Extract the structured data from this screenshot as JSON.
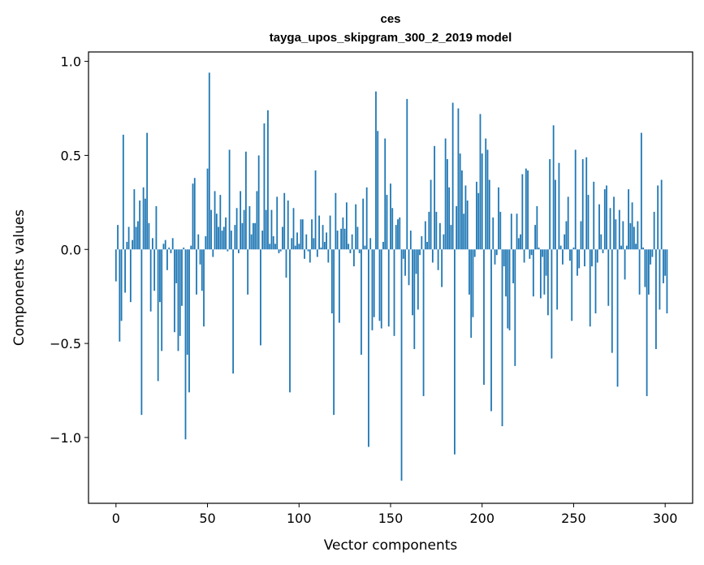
{
  "chart_data": {
    "type": "bar",
    "title": "ces",
    "subtitle": "tayga_upos_skipgram_300_2_2019 model",
    "xlabel": "Vector components",
    "ylabel": "Components values",
    "xlim": [
      -15,
      315
    ],
    "ylim": [
      -1.35,
      1.05
    ],
    "xticks": [
      0,
      50,
      100,
      150,
      200,
      250,
      300
    ],
    "xtick_labels": [
      "0",
      "50",
      "100",
      "150",
      "200",
      "250",
      "300"
    ],
    "yticks": [
      -1.0,
      -0.5,
      0.0,
      0.5,
      1.0
    ],
    "ytick_labels": [
      "−1.0",
      "−0.5",
      "0.0",
      "0.5",
      "1.0"
    ],
    "grid": false,
    "bar_color": "#1f77b4",
    "values": [
      -0.17,
      0.13,
      -0.49,
      -0.38,
      0.61,
      -0.23,
      0.04,
      0.12,
      -0.28,
      0.05,
      0.32,
      0.12,
      0.15,
      0.26,
      -0.88,
      0.33,
      0.27,
      0.62,
      0.14,
      -0.33,
      0.06,
      -0.22,
      0.23,
      -0.7,
      -0.28,
      -0.54,
      0.03,
      0.05,
      -0.11,
      0.01,
      -0.02,
      0.06,
      -0.44,
      -0.18,
      -0.54,
      -0.46,
      -0.3,
      0.01,
      -1.01,
      -0.56,
      -0.76,
      0.02,
      0.35,
      0.38,
      -0.24,
      0.08,
      -0.08,
      -0.22,
      -0.41,
      0.07,
      0.43,
      0.94,
      0.21,
      -0.04,
      0.31,
      0.19,
      0.12,
      0.29,
      0.1,
      0.12,
      0.17,
      -0.01,
      0.53,
      0.1,
      -0.66,
      0.13,
      0.22,
      -0.02,
      0.31,
      0.14,
      0.21,
      0.52,
      -0.24,
      0.23,
      0.08,
      0.14,
      0.14,
      0.31,
      0.5,
      -0.51,
      0.1,
      0.67,
      0.21,
      0.74,
      0.03,
      0.21,
      0.07,
      0.03,
      0.28,
      -0.02,
      -0.01,
      0.12,
      0.3,
      -0.15,
      0.26,
      -0.76,
      0.06,
      0.22,
      0.02,
      0.09,
      0.03,
      0.16,
      0.16,
      -0.05,
      0.08,
      -0.01,
      -0.07,
      0.16,
      0.06,
      0.42,
      -0.04,
      0.18,
      0.01,
      0.13,
      0.04,
      0.09,
      -0.07,
      0.18,
      -0.34,
      -0.88,
      0.3,
      0.1,
      -0.39,
      0.11,
      0.17,
      0.11,
      0.25,
      0.03,
      -0.02,
      0.08,
      -0.09,
      0.24,
      0.12,
      -0.02,
      -0.56,
      0.27,
      0.02,
      0.33,
      -1.05,
      0.06,
      -0.43,
      -0.36,
      0.84,
      0.63,
      -0.38,
      -0.42,
      0.04,
      0.59,
      0.29,
      -0.41,
      0.35,
      0.22,
      -0.46,
      0.13,
      0.16,
      0.17,
      -1.23,
      -0.05,
      -0.14,
      0.8,
      -0.19,
      0.1,
      -0.35,
      -0.53,
      -0.13,
      -0.32,
      -0.03,
      0.07,
      -0.78,
      0.15,
      0.04,
      0.2,
      0.37,
      -0.07,
      0.55,
      0.2,
      -0.11,
      0.14,
      -0.2,
      0.08,
      0.59,
      0.48,
      0.33,
      0.13,
      0.78,
      -1.09,
      0.23,
      0.75,
      0.51,
      0.42,
      0.19,
      0.34,
      0.26,
      -0.24,
      -0.47,
      -0.36,
      -0.04,
      0.36,
      0.3,
      0.72,
      0.51,
      -0.72,
      0.59,
      0.53,
      0.37,
      -0.86,
      0.17,
      -0.08,
      -0.03,
      0.33,
      0.2,
      -0.94,
      -0.09,
      -0.25,
      -0.42,
      -0.43,
      0.19,
      -0.18,
      -0.62,
      0.19,
      0.06,
      0.08,
      0.4,
      -0.07,
      0.43,
      0.42,
      -0.05,
      -0.03,
      -0.25,
      0.13,
      0.23,
      0.01,
      -0.26,
      -0.04,
      -0.24,
      -0.14,
      -0.35,
      0.48,
      -0.58,
      0.66,
      0.37,
      -0.32,
      0.46,
      0.02,
      -0.08,
      0.08,
      0.15,
      0.28,
      -0.06,
      -0.38,
      0.01,
      0.53,
      -0.14,
      -0.1,
      0.15,
      0.48,
      -0.09,
      0.49,
      0.29,
      -0.41,
      -0.09,
      0.36,
      -0.34,
      -0.07,
      0.24,
      0.08,
      -0.02,
      0.32,
      0.34,
      -0.3,
      0.22,
      -0.55,
      0.28,
      0.16,
      -0.73,
      0.21,
      0.02,
      0.15,
      -0.16,
      0.02,
      0.32,
      0.14,
      0.25,
      0.12,
      0.03,
      0.15,
      -0.24,
      0.62,
      0.01,
      -0.2,
      -0.78,
      -0.24,
      -0.08,
      -0.04,
      0.2,
      -0.53,
      0.34,
      -0.32,
      0.37,
      -0.18,
      -0.14,
      -0.34
    ]
  }
}
